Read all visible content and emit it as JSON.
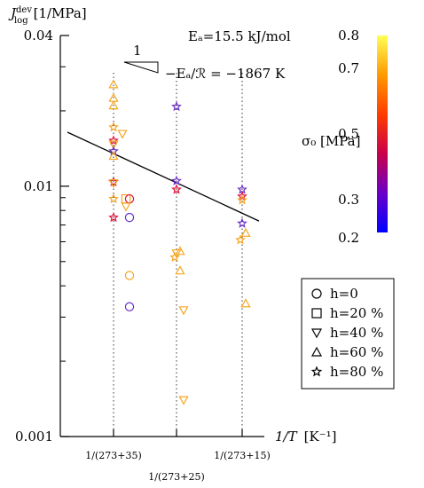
{
  "chart_data": {
    "type": "scatter",
    "y_scale": "log",
    "ylim": [
      0.001,
      0.04
    ],
    "y_ticks": [
      {
        "value": 0.001,
        "label": "0.001"
      },
      {
        "value": 0.01,
        "label": "0.01"
      },
      {
        "value": 0.04,
        "label": "0.04"
      }
    ],
    "ylabel": {
      "main": "J",
      "sup": "dev",
      "sub": "log",
      "unit": "[1/MPa]"
    },
    "xlabel": {
      "main": "1/T",
      "unit": "[K⁻¹]"
    },
    "categories": [
      "1/(273+35)",
      "1/(273+25)",
      "1/(273+15)"
    ],
    "annotations": {
      "activation_energy": "Eₐ=15.5 kJ/mol",
      "slope_run": "1",
      "slope_expr": "−Eₐ/ℛ = −1867 K"
    },
    "fit_line": {
      "x": [
        0,
        2
      ],
      "y": [
        0.0135,
        0.0078
      ]
    },
    "colorbar": {
      "label": "σ₀ [MPa]",
      "min": 0.2,
      "max": 0.8,
      "ticks": [
        "0.2",
        "0.3",
        "0.5",
        "0.7",
        "0.8"
      ],
      "stops": [
        "#0000ff",
        "#6a00c8",
        "#c8004a",
        "#ff3c00",
        "#ff9a00",
        "#ffff55"
      ]
    },
    "legend": [
      {
        "marker": "circle",
        "label": "h=0"
      },
      {
        "marker": "square",
        "label": "h=20 %"
      },
      {
        "marker": "triangle-down",
        "label": "h=40 %"
      },
      {
        "marker": "triangle-up",
        "label": "h=60 %"
      },
      {
        "marker": "star",
        "label": "h=80 %"
      }
    ],
    "points": [
      {
        "cat": 0,
        "offset": 0,
        "y": 0.0255,
        "marker": "triangle-up",
        "color": "#f5a623"
      },
      {
        "cat": 0,
        "offset": 0,
        "y": 0.0225,
        "marker": "triangle-up",
        "color": "#f5a623"
      },
      {
        "cat": 0,
        "offset": 0,
        "y": 0.021,
        "marker": "triangle-up",
        "color": "#f5a623"
      },
      {
        "cat": 0,
        "offset": 0,
        "y": 0.0172,
        "marker": "star",
        "color": "#f5a623"
      },
      {
        "cat": 0,
        "offset": 10,
        "y": 0.0162,
        "marker": "triangle-down",
        "color": "#f5a623"
      },
      {
        "cat": 0,
        "offset": 0,
        "y": 0.0152,
        "marker": "star",
        "color": "#e0103a"
      },
      {
        "cat": 0,
        "offset": 0,
        "y": 0.0147,
        "marker": "triangle-down",
        "color": "#f5a623"
      },
      {
        "cat": 0,
        "offset": 0,
        "y": 0.0138,
        "marker": "star",
        "color": "#6b2fc8"
      },
      {
        "cat": 0,
        "offset": 0,
        "y": 0.0132,
        "marker": "triangle-up",
        "color": "#f5a623"
      },
      {
        "cat": 0,
        "offset": 0,
        "y": 0.0104,
        "marker": "star",
        "color": "#e0103a"
      },
      {
        "cat": 0,
        "offset": 0,
        "y": 0.0103,
        "marker": "triangle-down",
        "color": "#f5a623"
      },
      {
        "cat": 0,
        "offset": 0,
        "y": 0.0089,
        "marker": "star",
        "color": "#f5a623"
      },
      {
        "cat": 0,
        "offset": 14,
        "y": 0.0089,
        "marker": "square",
        "color": "#f5a623"
      },
      {
        "cat": 0,
        "offset": 18,
        "y": 0.0089,
        "marker": "circle",
        "color": "#e0103a"
      },
      {
        "cat": 0,
        "offset": 14,
        "y": 0.0083,
        "marker": "triangle-down",
        "color": "#f5a623"
      },
      {
        "cat": 0,
        "offset": 0,
        "y": 0.0075,
        "marker": "star",
        "color": "#e0103a"
      },
      {
        "cat": 0,
        "offset": 18,
        "y": 0.0075,
        "marker": "circle",
        "color": "#6b2fc8"
      },
      {
        "cat": 0,
        "offset": 18,
        "y": 0.0044,
        "marker": "circle",
        "color": "#f5a623"
      },
      {
        "cat": 0,
        "offset": 18,
        "y": 0.0033,
        "marker": "circle",
        "color": "#6b2fc8"
      },
      {
        "cat": 1,
        "offset": 0,
        "y": 0.0208,
        "marker": "star",
        "color": "#6b2fc8"
      },
      {
        "cat": 1,
        "offset": 0,
        "y": 0.0105,
        "marker": "star",
        "color": "#6b2fc8"
      },
      {
        "cat": 1,
        "offset": 0,
        "y": 0.0097,
        "marker": "star",
        "color": "#e0103a"
      },
      {
        "cat": 1,
        "offset": 0,
        "y": 0.0054,
        "marker": "triangle-down",
        "color": "#f5a623"
      },
      {
        "cat": 1,
        "offset": 4,
        "y": 0.0055,
        "marker": "triangle-up",
        "color": "#f5a623"
      },
      {
        "cat": 1,
        "offset": -2,
        "y": 0.0052,
        "marker": "star",
        "color": "#f5a623"
      },
      {
        "cat": 1,
        "offset": 4,
        "y": 0.0046,
        "marker": "triangle-up",
        "color": "#f5a623"
      },
      {
        "cat": 1,
        "offset": 8,
        "y": 0.0032,
        "marker": "triangle-down",
        "color": "#f5a623"
      },
      {
        "cat": 1,
        "offset": 8,
        "y": 0.0014,
        "marker": "triangle-down",
        "color": "#f5a623"
      },
      {
        "cat": 2,
        "offset": 0,
        "y": 0.0097,
        "marker": "star",
        "color": "#6b2fc8"
      },
      {
        "cat": 2,
        "offset": 0,
        "y": 0.0091,
        "marker": "star",
        "color": "#e0103a"
      },
      {
        "cat": 2,
        "offset": 0,
        "y": 0.0088,
        "marker": "star",
        "color": "#f5a623"
      },
      {
        "cat": 2,
        "offset": 0,
        "y": 0.0071,
        "marker": "star",
        "color": "#6b2fc8"
      },
      {
        "cat": 2,
        "offset": 4,
        "y": 0.0065,
        "marker": "triangle-up",
        "color": "#f5a623"
      },
      {
        "cat": 2,
        "offset": -2,
        "y": 0.0061,
        "marker": "star",
        "color": "#f5a623"
      },
      {
        "cat": 2,
        "offset": 4,
        "y": 0.0034,
        "marker": "triangle-up",
        "color": "#f5a623"
      }
    ]
  }
}
